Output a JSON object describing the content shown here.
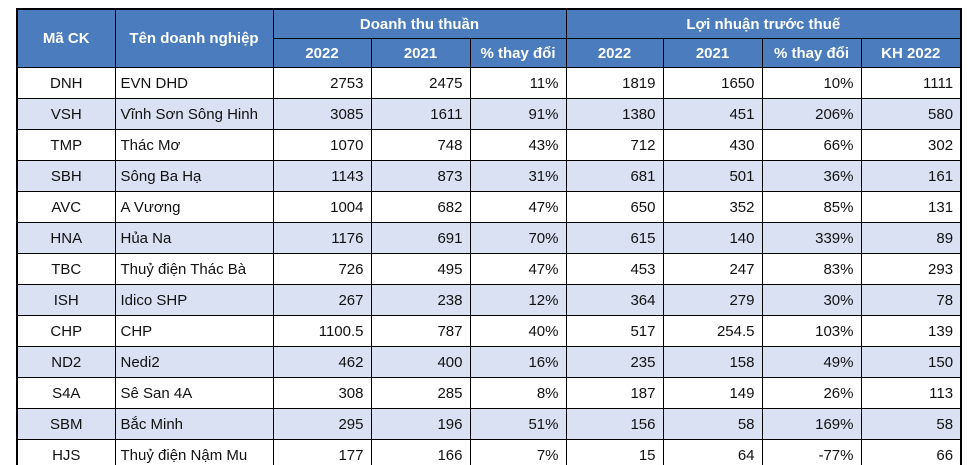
{
  "colors": {
    "header_bg": "#4A7CBE",
    "header_text": "#ffffff",
    "stripe_bg": "#D9E1F2",
    "row_bg": "#ffffff",
    "border": "#000000",
    "text": "#111111"
  },
  "table": {
    "group_headers": [
      {
        "label": "Mã CK"
      },
      {
        "label": "Tên doanh nghiệp"
      },
      {
        "label": "Doanh thu thuần"
      },
      {
        "label": "Lợi nhuận trước thuế"
      }
    ],
    "sub_headers": [
      "2022",
      "2021",
      "% thay đổi",
      "2022",
      "2021",
      "% thay đổi",
      "KH 2022"
    ],
    "rows": [
      [
        "DNH",
        "EVN DHD",
        "2753",
        "2475",
        "11%",
        "1819",
        "1650",
        "10%",
        "1111"
      ],
      [
        "VSH",
        "Vĩnh Sơn Sông Hinh",
        "3085",
        "1611",
        "91%",
        "1380",
        "451",
        "206%",
        "580"
      ],
      [
        "TMP",
        "Thác Mơ",
        "1070",
        "748",
        "43%",
        "712",
        "430",
        "66%",
        "302"
      ],
      [
        "SBH",
        "Sông Ba Hạ",
        "1143",
        "873",
        "31%",
        "681",
        "501",
        "36%",
        "161"
      ],
      [
        "AVC",
        "A Vương",
        "1004",
        "682",
        "47%",
        "650",
        "352",
        "85%",
        "131"
      ],
      [
        "HNA",
        "Hủa Na",
        "1176",
        "691",
        "70%",
        "615",
        "140",
        "339%",
        "89"
      ],
      [
        "TBC",
        "Thuỷ điện Thác Bà",
        "726",
        "495",
        "47%",
        "453",
        "247",
        "83%",
        "293"
      ],
      [
        "ISH",
        "Idico SHP",
        "267",
        "238",
        "12%",
        "364",
        "279",
        "30%",
        "78"
      ],
      [
        "CHP",
        "CHP",
        "1100.5",
        "787",
        "40%",
        "517",
        "254.5",
        "103%",
        "139"
      ],
      [
        "ND2",
        "Nedi2",
        "462",
        "400",
        "16%",
        "235",
        "158",
        "49%",
        "150"
      ],
      [
        "S4A",
        "Sê San 4A",
        "308",
        "285",
        "8%",
        "187",
        "149",
        "26%",
        "113"
      ],
      [
        "SBM",
        "Bắc Minh",
        "295",
        "196",
        "51%",
        "156",
        "58",
        "169%",
        "58"
      ],
      [
        "HJS",
        "Thuỷ điện Nậm Mu",
        "177",
        "166",
        "7%",
        "15",
        "64",
        "-77%",
        "66"
      ]
    ]
  },
  "chart_data": {
    "type": "table",
    "title": "",
    "column_groups": [
      {
        "label": "Doanh thu thuần",
        "span_columns": [
          "2022",
          "2021",
          "% thay đổi"
        ]
      },
      {
        "label": "Lợi nhuận trước thuế",
        "span_columns": [
          "2022",
          "2021",
          "% thay đổi",
          "KH 2022"
        ]
      }
    ],
    "columns": [
      "Mã CK",
      "Tên doanh nghiệp",
      "Doanh thu thuần 2022",
      "Doanh thu thuần 2021",
      "Doanh thu thuần % thay đổi",
      "Lợi nhuận trước thuế 2022",
      "Lợi nhuận trước thuế 2021",
      "Lợi nhuận trước thuế % thay đổi",
      "KH 2022"
    ],
    "rows": [
      [
        "DNH",
        "EVN DHD",
        2753,
        2475,
        "11%",
        1819,
        1650,
        "10%",
        1111
      ],
      [
        "VSH",
        "Vĩnh Sơn Sông Hinh",
        3085,
        1611,
        "91%",
        1380,
        451,
        "206%",
        580
      ],
      [
        "TMP",
        "Thác Mơ",
        1070,
        748,
        "43%",
        712,
        430,
        "66%",
        302
      ],
      [
        "SBH",
        "Sông Ba Hạ",
        1143,
        873,
        "31%",
        681,
        501,
        "36%",
        161
      ],
      [
        "AVC",
        "A Vương",
        1004,
        682,
        "47%",
        650,
        352,
        "85%",
        131
      ],
      [
        "HNA",
        "Hủa Na",
        1176,
        691,
        "70%",
        615,
        140,
        "339%",
        89
      ],
      [
        "TBC",
        "Thuỷ điện Thác Bà",
        726,
        495,
        "47%",
        453,
        247,
        "83%",
        293
      ],
      [
        "ISH",
        "Idico SHP",
        267,
        238,
        "12%",
        364,
        279,
        "30%",
        78
      ],
      [
        "CHP",
        "CHP",
        1100.5,
        787,
        "40%",
        517,
        254.5,
        "103%",
        139
      ],
      [
        "ND2",
        "Nedi2",
        462,
        400,
        "16%",
        235,
        158,
        "49%",
        150
      ],
      [
        "S4A",
        "Sê San 4A",
        308,
        285,
        "8%",
        187,
        149,
        "26%",
        113
      ],
      [
        "SBM",
        "Bắc Minh",
        295,
        196,
        "51%",
        156,
        58,
        "169%",
        58
      ],
      [
        "HJS",
        "Thuỷ điện Nậm Mu",
        177,
        166,
        "7%",
        15,
        64,
        "-77%",
        66
      ]
    ]
  }
}
